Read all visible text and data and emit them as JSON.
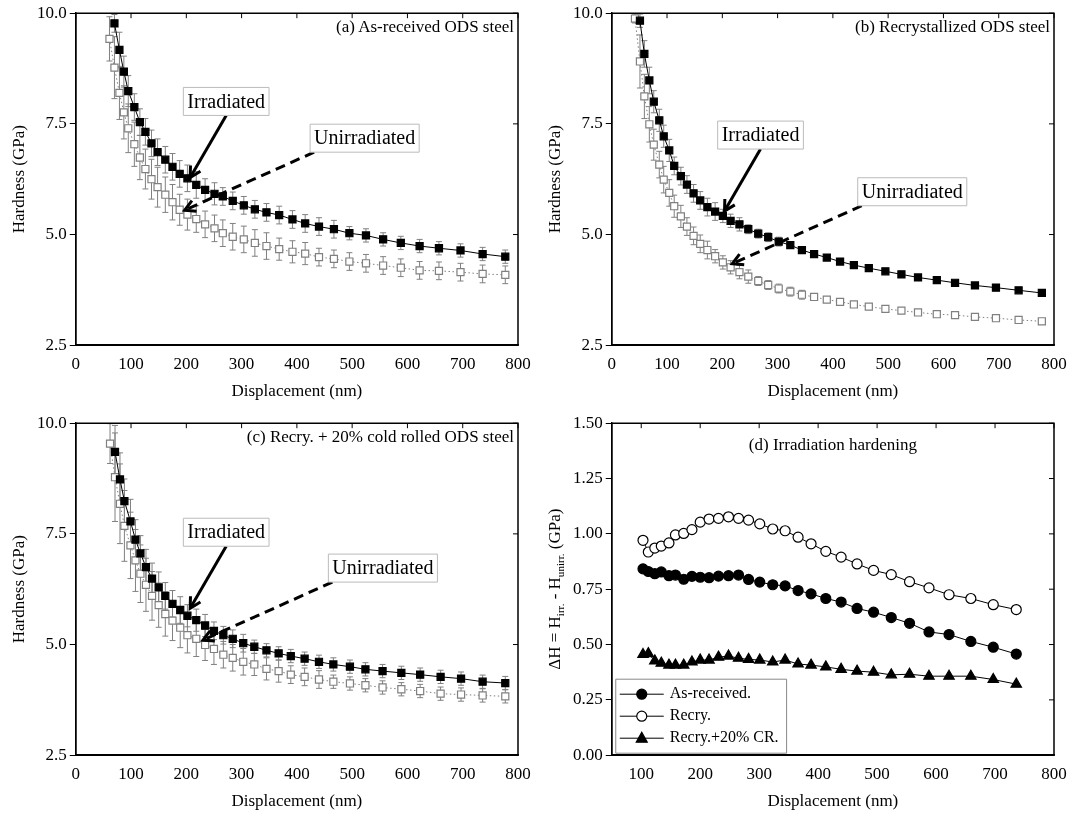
{
  "chart_data": [
    {
      "type": "line",
      "title": "(a) As-received ODS steel",
      "xlabel": "Displacement (nm)",
      "ylabel": "Hardness (GPa)",
      "xlim": [
        0,
        800
      ],
      "xticks": [
        0,
        100,
        200,
        300,
        400,
        500,
        600,
        700,
        800
      ],
      "ylim": [
        2.5,
        10
      ],
      "yticks": [
        {
          "value": 2.5,
          "label": "2.5"
        },
        {
          "value": 5,
          "label": "5.0"
        },
        {
          "value": 7.5,
          "label": "7.5"
        },
        {
          "value": 10,
          "label": "10.0"
        }
      ],
      "grid": false,
      "legend": false,
      "annotations": [
        {
          "text": "Irradiated",
          "x": 207,
          "y": 6.29
        },
        {
          "text": "Unirradiated",
          "x": 197,
          "y": 5.55
        }
      ],
      "series": [
        {
          "color": "#000000",
          "marker": "square",
          "line_style": "solid",
          "x": [
            70,
            79,
            87,
            95,
            106,
            116,
            126,
            137,
            148,
            162,
            175,
            188,
            202,
            218,
            234,
            251,
            266,
            284,
            304,
            324,
            345,
            368,
            392,
            415,
            440,
            467,
            495,
            525,
            556,
            588,
            622,
            657,
            696,
            736,
            777
          ],
          "values": [
            9.77,
            9.17,
            8.68,
            8.24,
            7.88,
            7.54,
            7.32,
            7.06,
            6.86,
            6.69,
            6.53,
            6.37,
            6.27,
            6.12,
            6.01,
            5.92,
            5.86,
            5.76,
            5.66,
            5.57,
            5.5,
            5.44,
            5.34,
            5.25,
            5.18,
            5.12,
            5.03,
            4.98,
            4.89,
            4.81,
            4.74,
            4.69,
            4.64,
            4.56,
            4.5
          ],
          "errors": [
            0.2,
            0.4,
            0.35,
            0.35,
            0.3,
            0.3,
            0.3,
            0.3,
            0.3,
            0.3,
            0.3,
            0.3,
            0.3,
            0.3,
            0.25,
            0.25,
            0.2,
            0.2,
            0.2,
            0.2,
            0.2,
            0.2,
            0.2,
            0.2,
            0.2,
            0.2,
            0.15,
            0.15,
            0.15,
            0.15,
            0.15,
            0.15,
            0.15,
            0.15,
            0.15
          ]
        },
        {
          "color": "#808080",
          "marker": "square-open",
          "line_style": "dotted",
          "x": [
            61,
            70,
            79,
            87,
            95,
            106,
            116,
            126,
            137,
            148,
            162,
            175,
            188,
            202,
            218,
            234,
            251,
            266,
            284,
            304,
            324,
            345,
            368,
            392,
            415,
            440,
            467,
            495,
            525,
            556,
            588,
            622,
            657,
            696,
            736,
            777
          ],
          "values": [
            9.42,
            8.77,
            8.2,
            7.76,
            7.4,
            7.04,
            6.74,
            6.48,
            6.25,
            6.07,
            5.9,
            5.73,
            5.56,
            5.45,
            5.35,
            5.23,
            5.14,
            5.03,
            4.95,
            4.89,
            4.81,
            4.74,
            4.67,
            4.61,
            4.57,
            4.49,
            4.45,
            4.39,
            4.35,
            4.3,
            4.25,
            4.19,
            4.18,
            4.15,
            4.11,
            4.09
          ],
          "errors": [
            0.5,
            0.7,
            0.6,
            0.6,
            0.55,
            0.5,
            0.5,
            0.45,
            0.45,
            0.45,
            0.4,
            0.4,
            0.35,
            0.35,
            0.3,
            0.3,
            0.3,
            0.3,
            0.3,
            0.3,
            0.3,
            0.3,
            0.25,
            0.25,
            0.25,
            0.2,
            0.2,
            0.2,
            0.2,
            0.2,
            0.2,
            0.2,
            0.2,
            0.2,
            0.2,
            0.2
          ]
        }
      ]
    },
    {
      "type": "line",
      "title": "(b) Recrystallized ODS steel",
      "xlabel": "Displacement (nm)",
      "ylabel": "Hardness (GPa)",
      "xlim": [
        0,
        800
      ],
      "xticks": [
        0,
        100,
        200,
        300,
        400,
        500,
        600,
        700,
        800
      ],
      "ylim": [
        2.5,
        10
      ],
      "yticks": [
        {
          "value": 2.5,
          "label": "2.5"
        },
        {
          "value": 5,
          "label": "5.0"
        },
        {
          "value": 7.5,
          "label": "7.5"
        },
        {
          "value": 10,
          "label": "10.0"
        }
      ],
      "grid": false,
      "legend": false,
      "annotations": [
        {
          "text": "Irradiated",
          "x": 204,
          "y": 5.53
        },
        {
          "text": "Unirradiated",
          "x": 218,
          "y": 4.34
        }
      ],
      "series": [
        {
          "color": "#000000",
          "marker": "square",
          "line_style": "solid",
          "x": [
            51,
            59,
            68,
            76,
            86,
            94,
            104,
            113,
            125,
            136,
            148,
            160,
            173,
            187,
            201,
            215,
            231,
            247,
            265,
            283,
            302,
            323,
            344,
            366,
            389,
            413,
            438,
            465,
            495,
            524,
            554,
            588,
            621,
            657,
            695,
            736,
            778
          ],
          "values": [
            9.83,
            9.08,
            8.48,
            8.0,
            7.58,
            7.22,
            6.9,
            6.55,
            6.32,
            6.13,
            5.93,
            5.77,
            5.62,
            5.52,
            5.42,
            5.31,
            5.23,
            5.12,
            5.02,
            4.94,
            4.84,
            4.76,
            4.65,
            4.56,
            4.48,
            4.39,
            4.31,
            4.24,
            4.17,
            4.1,
            4.03,
            3.97,
            3.91,
            3.85,
            3.8,
            3.74,
            3.68
          ],
          "errors": [
            0.15,
            0.3,
            0.3,
            0.25,
            0.25,
            0.25,
            0.25,
            0.2,
            0.2,
            0.2,
            0.2,
            0.2,
            0.2,
            0.2,
            0.15,
            0.15,
            0.15,
            0.1,
            0.1,
            0.1,
            0.1,
            null,
            null,
            null,
            null,
            null,
            null,
            null,
            null,
            null,
            null,
            null,
            null,
            null,
            null,
            null,
            null
          ]
        },
        {
          "color": "#808080",
          "marker": "square-open",
          "line_style": "dotted",
          "x": [
            42,
            51,
            59,
            68,
            76,
            86,
            94,
            104,
            113,
            125,
            136,
            148,
            160,
            173,
            187,
            201,
            215,
            231,
            247,
            265,
            283,
            302,
            323,
            344,
            366,
            389,
            413,
            438,
            465,
            495,
            524,
            554,
            588,
            621,
            657,
            695,
            736,
            778
          ],
          "values": [
            9.88,
            8.91,
            8.12,
            7.49,
            7.03,
            6.58,
            6.24,
            5.94,
            5.64,
            5.41,
            5.18,
            4.97,
            4.79,
            4.65,
            4.51,
            4.37,
            4.26,
            4.15,
            4.05,
            3.95,
            3.86,
            3.78,
            3.71,
            3.64,
            3.59,
            3.53,
            3.48,
            3.42,
            3.37,
            3.32,
            3.28,
            3.24,
            3.2,
            3.18,
            3.14,
            3.11,
            3.07,
            3.04
          ],
          "errors": [
            0.1,
            0.6,
            0.5,
            0.4,
            0.35,
            0.3,
            0.3,
            0.3,
            0.25,
            0.25,
            0.2,
            0.2,
            0.2,
            0.2,
            0.15,
            0.15,
            0.15,
            0.15,
            0.15,
            0.1,
            0.1,
            0.1,
            0.1,
            0.1,
            null,
            null,
            null,
            null,
            null,
            null,
            null,
            null,
            null,
            null,
            null,
            null,
            null,
            null
          ]
        }
      ]
    },
    {
      "type": "line",
      "title": "(c) Recry. + 20% cold rolled ODS steel",
      "xlabel": "Displacement (nm)",
      "ylabel": "Hardness (GPa)",
      "xlim": [
        0,
        800
      ],
      "xticks": [
        0,
        100,
        200,
        300,
        400,
        500,
        600,
        700,
        800
      ],
      "ylim": [
        2.5,
        10
      ],
      "yticks": [
        {
          "value": 2.5,
          "label": "2.5"
        },
        {
          "value": 5,
          "label": "5.0"
        },
        {
          "value": 7.5,
          "label": "7.5"
        },
        {
          "value": 10,
          "label": "10.0"
        }
      ],
      "grid": false,
      "legend": false,
      "annotations": [
        {
          "text": "Irradiated",
          "x": 207,
          "y": 5.82
        },
        {
          "text": "Unirradiated",
          "x": 230,
          "y": 5.1
        }
      ],
      "series": [
        {
          "color": "#000000",
          "marker": "square",
          "line_style": "solid",
          "x": [
            71,
            80,
            88,
            99,
            108,
            117,
            127,
            138,
            150,
            162,
            175,
            189,
            202,
            218,
            234,
            250,
            267,
            284,
            303,
            323,
            345,
            367,
            389,
            414,
            440,
            466,
            496,
            524,
            555,
            589,
            623,
            660,
            697,
            736,
            777
          ],
          "values": [
            9.35,
            8.73,
            8.24,
            7.78,
            7.37,
            7.06,
            6.75,
            6.49,
            6.29,
            6.1,
            5.92,
            5.78,
            5.65,
            5.55,
            5.43,
            5.31,
            5.21,
            5.13,
            5.03,
            4.95,
            4.87,
            4.8,
            4.74,
            4.68,
            4.61,
            4.55,
            4.5,
            4.44,
            4.4,
            4.36,
            4.32,
            4.27,
            4.23,
            4.16,
            4.13
          ],
          "errors": [
            0.6,
            0.6,
            0.5,
            0.5,
            0.45,
            0.4,
            0.4,
            0.35,
            0.35,
            0.3,
            0.3,
            0.3,
            0.25,
            0.25,
            0.25,
            0.2,
            0.2,
            0.2,
            0.2,
            0.15,
            0.15,
            0.15,
            0.15,
            0.15,
            0.15,
            0.15,
            0.15,
            0.15,
            0.15,
            0.15,
            0.15,
            0.15,
            0.15,
            0.15,
            0.15
          ]
        },
        {
          "color": "#808080",
          "marker": "square-open",
          "line_style": "dotted",
          "x": [
            62,
            71,
            80,
            88,
            99,
            108,
            117,
            127,
            138,
            150,
            162,
            175,
            189,
            202,
            218,
            234,
            250,
            267,
            284,
            303,
            323,
            345,
            367,
            389,
            414,
            440,
            466,
            496,
            524,
            555,
            589,
            623,
            660,
            697,
            736,
            777
          ],
          "values": [
            9.54,
            8.78,
            8.18,
            7.68,
            7.24,
            6.9,
            6.6,
            6.35,
            6.1,
            5.89,
            5.69,
            5.54,
            5.38,
            5.21,
            5.13,
            4.99,
            4.9,
            4.77,
            4.7,
            4.61,
            4.55,
            4.45,
            4.4,
            4.32,
            4.27,
            4.21,
            4.16,
            4.12,
            4.08,
            4.03,
            3.99,
            3.95,
            3.89,
            3.87,
            3.85,
            3.83
          ],
          "errors": [
            0.45,
            1.0,
            0.9,
            0.8,
            0.75,
            0.7,
            0.65,
            0.6,
            0.55,
            0.5,
            0.5,
            0.45,
            0.45,
            0.4,
            0.4,
            0.35,
            0.35,
            0.3,
            0.3,
            0.3,
            0.25,
            0.25,
            0.25,
            0.2,
            0.2,
            0.2,
            0.15,
            0.15,
            0.15,
            0.15,
            0.15,
            0.15,
            0.15,
            0.15,
            0.15,
            0.15
          ]
        }
      ]
    },
    {
      "type": "line",
      "title": "(d) Irradiation hardening",
      "xlabel": "Displacement (nm)",
      "ylabel": "ΔH = H$_{irr.}$ - H$_{unirr.}$ (GPa)",
      "xlim": [
        50,
        800
      ],
      "xticks": [
        100,
        200,
        300,
        400,
        500,
        600,
        700,
        800
      ],
      "ylim": [
        0,
        1.5
      ],
      "yticks": [
        {
          "value": 0,
          "label": "0.00"
        },
        {
          "value": 0.25,
          "label": "0.25"
        },
        {
          "value": 0.5,
          "label": "0.50"
        },
        {
          "value": 0.75,
          "label": "0.75"
        },
        {
          "value": 1,
          "label": "1.00"
        },
        {
          "value": 1.25,
          "label": "1.25"
        },
        {
          "value": 1.5,
          "label": "1.50"
        }
      ],
      "grid": false,
      "legend": "bottom left",
      "x": [
        103,
        112,
        123,
        134,
        147,
        158,
        172,
        186,
        200,
        215,
        231,
        248,
        265,
        282,
        301,
        323,
        344,
        366,
        388,
        413,
        439,
        466,
        494,
        524,
        555,
        588,
        622,
        659,
        697,
        736
      ],
      "series": [
        {
          "name": "As-received.",
          "color": "#000000",
          "marker": "circle",
          "line_style": "solid",
          "values": [
            0.842,
            0.83,
            0.82,
            0.828,
            0.811,
            0.814,
            0.795,
            0.808,
            0.804,
            0.802,
            0.809,
            0.811,
            0.814,
            0.794,
            0.782,
            0.77,
            0.765,
            0.744,
            0.729,
            0.708,
            0.692,
            0.663,
            0.646,
            0.622,
            0.596,
            0.557,
            0.545,
            0.514,
            0.488,
            0.457
          ]
        },
        {
          "name": "Recry.",
          "color": "#000000",
          "marker": "circle-open",
          "line_style": "solid",
          "values": [
            0.971,
            0.918,
            0.936,
            0.945,
            0.959,
            0.995,
            1.002,
            1.019,
            1.053,
            1.067,
            1.07,
            1.077,
            1.07,
            1.062,
            1.045,
            1.022,
            1.014,
            0.985,
            0.955,
            0.921,
            0.895,
            0.864,
            0.835,
            0.816,
            0.784,
            0.756,
            0.725,
            0.708,
            0.68,
            0.658
          ]
        },
        {
          "name": "Recry.+20% CR.",
          "color": "#000000",
          "marker": "triangle",
          "line_style": "solid",
          "values": [
            0.455,
            0.459,
            0.426,
            0.416,
            0.407,
            0.407,
            0.407,
            0.421,
            0.43,
            0.43,
            0.443,
            0.448,
            0.438,
            0.433,
            0.43,
            0.421,
            0.43,
            0.412,
            0.407,
            0.399,
            0.388,
            0.38,
            0.375,
            0.363,
            0.366,
            0.357,
            0.357,
            0.357,
            0.342,
            0.321
          ]
        }
      ]
    }
  ]
}
